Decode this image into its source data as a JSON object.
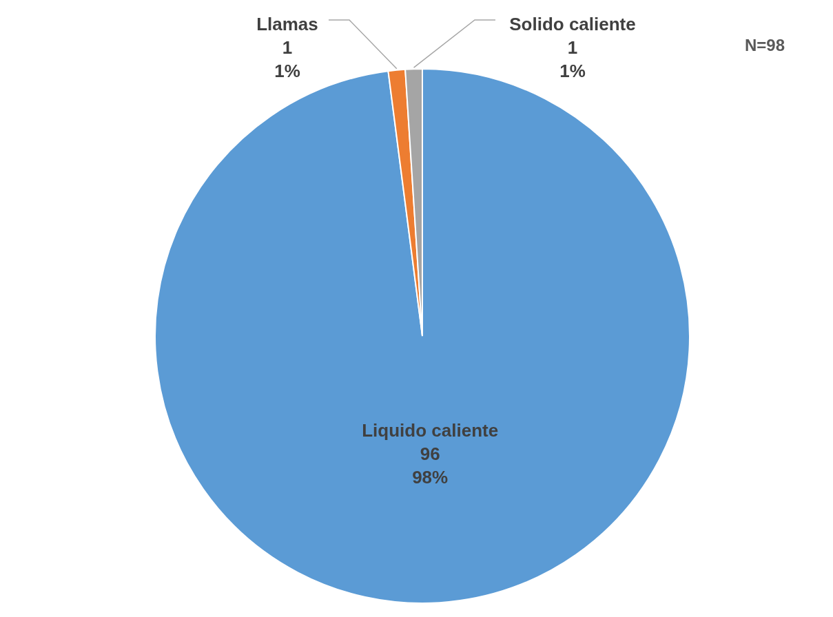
{
  "chart_data": {
    "type": "pie",
    "categories": [
      "Liquido caliente",
      "Llamas",
      "Solido caliente"
    ],
    "values": [
      96,
      1,
      1
    ],
    "colors": [
      "#5b9bd5",
      "#ed7d31",
      "#a5a5a5"
    ],
    "value_labels": [
      "96\n98%",
      "1\n1%",
      "1\n1%"
    ],
    "annotations": [
      "N=98"
    ]
  }
}
